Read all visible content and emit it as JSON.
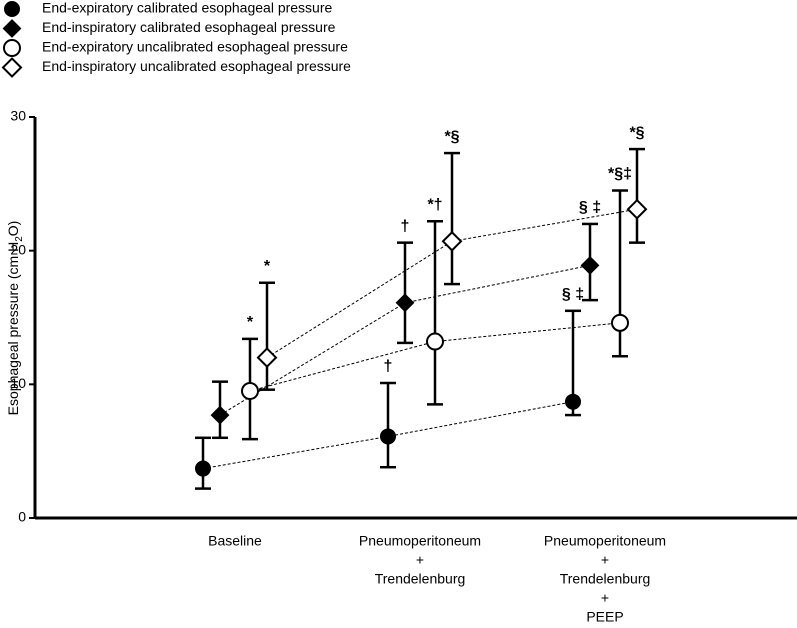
{
  "chart_data": {
    "type": "errorbar",
    "y_label_parts": [
      "Esophageal pressure (cm H",
      "2",
      "O)"
    ],
    "categories": [
      [
        "Baseline"
      ],
      [
        "Pneumoperitoneum",
        "+",
        "Trendelenburg"
      ],
      [
        "Pneumoperitoneum",
        "+",
        "Trendelenburg",
        "+",
        "PEEP"
      ]
    ],
    "ylim": [
      0,
      30
    ],
    "yticks": [
      0,
      10,
      20,
      30
    ],
    "line_style": "dashed",
    "series": [
      {
        "name": "End-expiratory calibrated esophageal pressure",
        "color": "#000000",
        "marker": "filled-circle",
        "values": [
          3.7,
          6.1,
          8.7
        ],
        "lower": [
          2.2,
          3.8,
          7.7
        ],
        "upper": [
          6.0,
          10.1,
          15.5
        ],
        "annotations": [
          null,
          "†",
          "§ ‡"
        ]
      },
      {
        "name": "End-inspiratory calibrated esophageal pressure",
        "color": "#000000",
        "marker": "filled-diamond",
        "values": [
          7.7,
          16.1,
          18.9
        ],
        "lower": [
          6.0,
          13.1,
          16.3
        ],
        "upper": [
          10.2,
          20.6,
          22.0
        ],
        "annotations": [
          null,
          "†",
          "§ ‡"
        ]
      },
      {
        "name": "End-expiratory uncalibrated esophageal pressure",
        "color": "#000000",
        "marker": "open-circle",
        "values": [
          9.5,
          13.2,
          14.6
        ],
        "lower": [
          5.9,
          8.5,
          12.1
        ],
        "upper": [
          13.4,
          22.2,
          24.5
        ],
        "annotations": [
          "*",
          "*†",
          "*§‡"
        ]
      },
      {
        "name": "End-inspiratory uncalibrated esophageal pressure",
        "color": "#000000",
        "marker": "open-diamond",
        "values": [
          12.0,
          20.7,
          23.1
        ],
        "lower": [
          9.6,
          17.5,
          20.6
        ],
        "upper": [
          17.6,
          27.3,
          27.6
        ],
        "annotations": [
          "*",
          "*§",
          "*§"
        ]
      }
    ]
  }
}
